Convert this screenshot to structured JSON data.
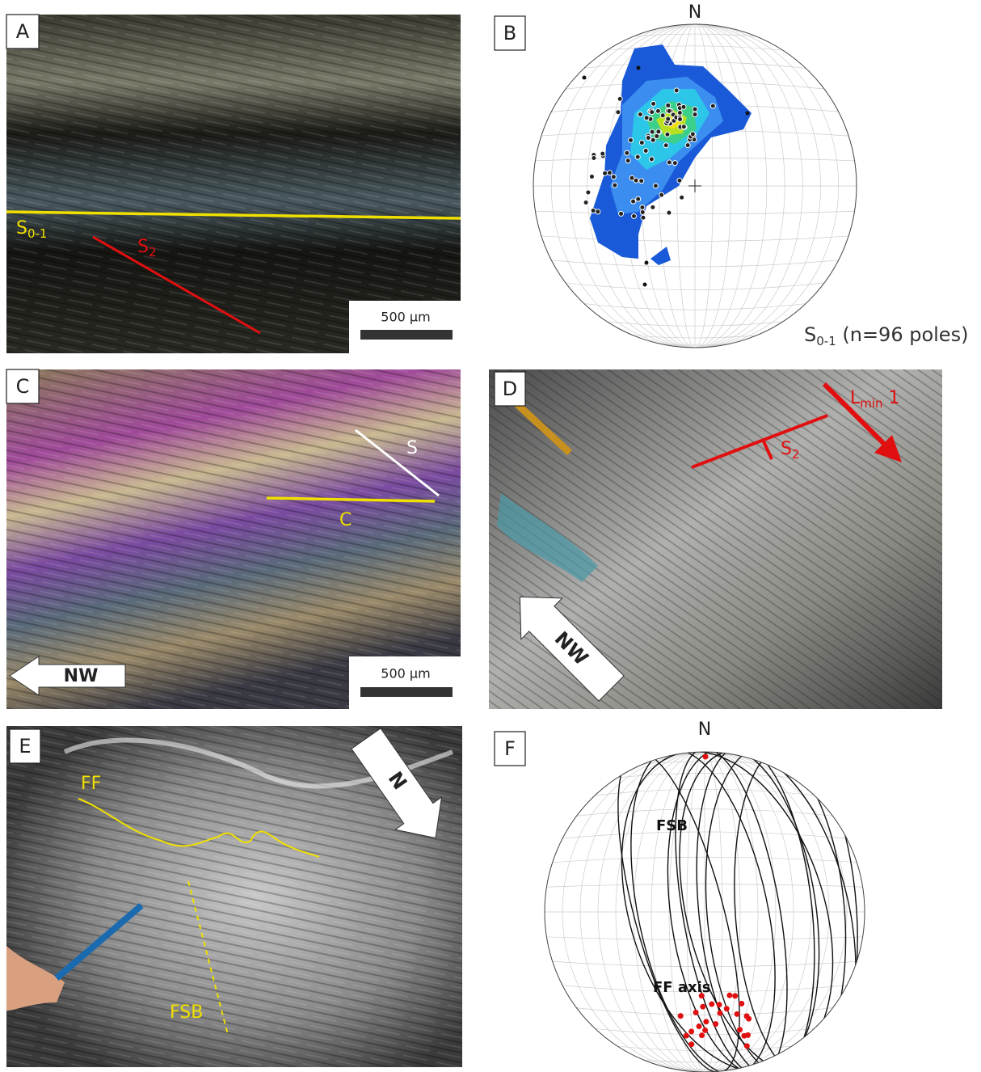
{
  "panels": [
    {
      "label": "A",
      "annotations": [
        {
          "main": "S",
          "sub": "0-1"
        },
        {
          "main": "S",
          "sub": "2"
        }
      ],
      "scale_bar": "500 µm"
    },
    {
      "label": "B",
      "north": "N",
      "caption": {
        "main": "S",
        "sub": "0-1",
        "rest": " (n=96 poles)"
      }
    },
    {
      "label": "C",
      "annotations": [
        "S",
        "C"
      ],
      "direction": "NW",
      "scale_bar": "500 µm"
    },
    {
      "label": "D",
      "annotations": [
        {
          "main": "L",
          "sub": "min",
          "rest": " 1"
        },
        {
          "main": "S",
          "sub": "2"
        }
      ],
      "direction": "NW"
    },
    {
      "label": "E",
      "annotations": [
        "FF",
        "FSB"
      ],
      "direction": "N"
    },
    {
      "label": "F",
      "north": "N",
      "annotations": [
        "FSB",
        "FF axis"
      ]
    }
  ]
}
